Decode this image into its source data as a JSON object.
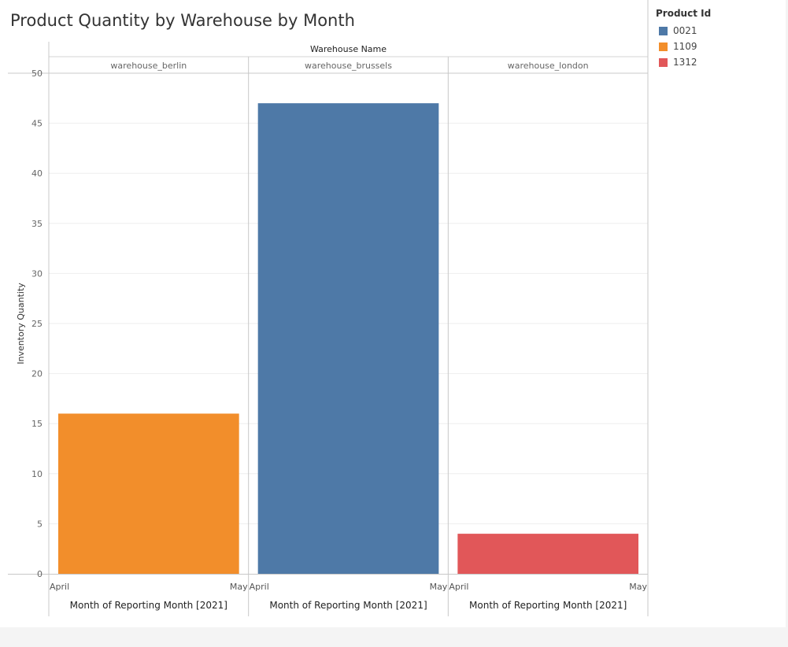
{
  "chart_data": {
    "type": "bar",
    "title": "Product Quantity by Warehouse by Month",
    "ylabel": "Inventory Quantity",
    "column_header_title": "Warehouse Name",
    "xlabel": "Month of Reporting Month [2021]",
    "ylim": [
      0,
      50
    ],
    "yticks": [
      0,
      5,
      10,
      15,
      20,
      25,
      30,
      35,
      40,
      45,
      50
    ],
    "x_tick_labels": [
      "April",
      "May"
    ],
    "grid": true,
    "legend_placement": "top-right",
    "legend": {
      "title": "Product Id",
      "items": [
        {
          "label": "0021",
          "color": "#4e79a7"
        },
        {
          "label": "1109",
          "color": "#f28e2b"
        },
        {
          "label": "1312",
          "color": "#e15759"
        }
      ]
    },
    "panels": [
      {
        "warehouse": "warehouse_berlin",
        "product_id": "1109",
        "month": "April",
        "value": 16,
        "color": "#f28e2b"
      },
      {
        "warehouse": "warehouse_brussels",
        "product_id": "0021",
        "month": "April",
        "value": 47,
        "color": "#4e79a7"
      },
      {
        "warehouse": "warehouse_london",
        "product_id": "1312",
        "month": "April",
        "value": 4,
        "color": "#e15759"
      }
    ]
  }
}
